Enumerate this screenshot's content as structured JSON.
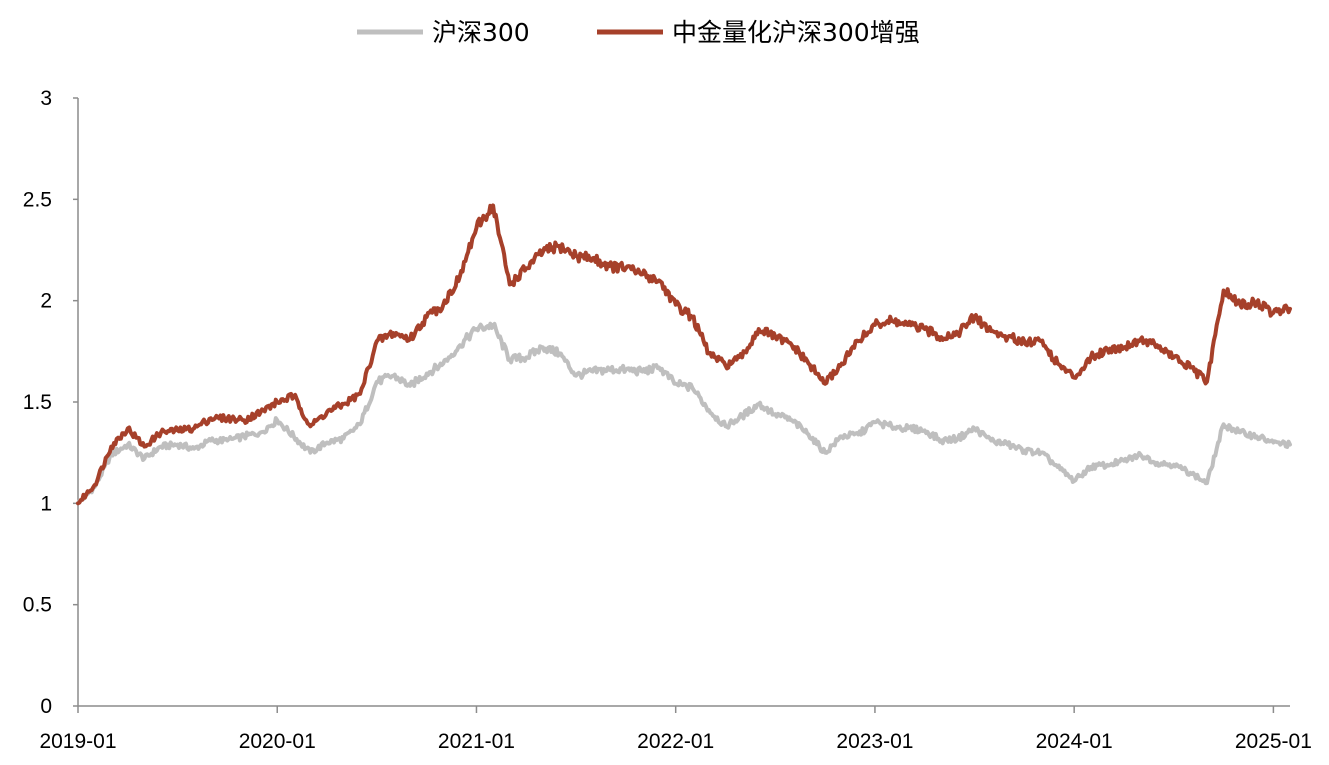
{
  "chart_data": {
    "type": "line",
    "title": "",
    "xlabel": "",
    "ylabel": "",
    "ylim": [
      0,
      3
    ],
    "xlim": [
      "2019-01",
      "2025-02"
    ],
    "grid": false,
    "legend_placement": "top",
    "y_ticks": [
      "0",
      "0.5",
      "1",
      "1.5",
      "2",
      "2.5",
      "3"
    ],
    "x_ticks": [
      "2019-01",
      "2020-01",
      "2021-01",
      "2022-01",
      "2023-01",
      "2024-01",
      "2025-01"
    ],
    "series": [
      {
        "name": "沪深300",
        "color": "#bfbfbf",
        "points": [
          [
            "2019-01",
            1.0
          ],
          [
            "2019-02",
            1.08
          ],
          [
            "2019-03",
            1.24
          ],
          [
            "2019-04",
            1.29
          ],
          [
            "2019-05",
            1.22
          ],
          [
            "2019-06",
            1.28
          ],
          [
            "2019-07",
            1.29
          ],
          [
            "2019-08",
            1.27
          ],
          [
            "2019-09",
            1.31
          ],
          [
            "2019-10",
            1.31
          ],
          [
            "2019-11",
            1.33
          ],
          [
            "2019-12",
            1.35
          ],
          [
            "2020-01",
            1.41
          ],
          [
            "2020-02",
            1.33
          ],
          [
            "2020-03",
            1.25
          ],
          [
            "2020-04",
            1.3
          ],
          [
            "2020-05",
            1.32
          ],
          [
            "2020-06",
            1.39
          ],
          [
            "2020-07",
            1.6
          ],
          [
            "2020-08",
            1.63
          ],
          [
            "2020-09",
            1.58
          ],
          [
            "2020-10",
            1.64
          ],
          [
            "2020-11",
            1.69
          ],
          [
            "2020-12",
            1.78
          ],
          [
            "2021-01",
            1.86
          ],
          [
            "2021-02",
            1.88
          ],
          [
            "2021-03",
            1.71
          ],
          [
            "2021-04",
            1.72
          ],
          [
            "2021-05",
            1.77
          ],
          [
            "2021-06",
            1.74
          ],
          [
            "2021-07",
            1.63
          ],
          [
            "2021-08",
            1.65
          ],
          [
            "2021-09",
            1.66
          ],
          [
            "2021-10",
            1.66
          ],
          [
            "2021-11",
            1.65
          ],
          [
            "2021-12",
            1.67
          ],
          [
            "2022-01",
            1.59
          ],
          [
            "2022-02",
            1.57
          ],
          [
            "2022-03",
            1.46
          ],
          [
            "2022-04",
            1.38
          ],
          [
            "2022-05",
            1.43
          ],
          [
            "2022-06",
            1.49
          ],
          [
            "2022-07",
            1.44
          ],
          [
            "2022-08",
            1.41
          ],
          [
            "2022-09",
            1.34
          ],
          [
            "2022-10",
            1.25
          ],
          [
            "2022-11",
            1.33
          ],
          [
            "2022-12",
            1.34
          ],
          [
            "2023-01",
            1.4
          ],
          [
            "2023-02",
            1.38
          ],
          [
            "2023-03",
            1.37
          ],
          [
            "2023-04",
            1.36
          ],
          [
            "2023-05",
            1.31
          ],
          [
            "2023-06",
            1.32
          ],
          [
            "2023-07",
            1.37
          ],
          [
            "2023-08",
            1.31
          ],
          [
            "2023-09",
            1.29
          ],
          [
            "2023-10",
            1.26
          ],
          [
            "2023-11",
            1.25
          ],
          [
            "2023-12",
            1.18
          ],
          [
            "2024-01",
            1.11
          ],
          [
            "2024-02",
            1.18
          ],
          [
            "2024-03",
            1.19
          ],
          [
            "2024-04",
            1.21
          ],
          [
            "2024-05",
            1.24
          ],
          [
            "2024-06",
            1.2
          ],
          [
            "2024-07",
            1.19
          ],
          [
            "2024-08",
            1.15
          ],
          [
            "2024-09",
            1.1
          ],
          [
            "2024-10",
            1.39
          ],
          [
            "2024-11",
            1.35
          ],
          [
            "2024-12",
            1.33
          ],
          [
            "2025-01",
            1.3
          ],
          [
            "2025-02",
            1.29
          ]
        ]
      },
      {
        "name": "中金量化沪深300增强",
        "color": "#a6402a",
        "points": [
          [
            "2019-01",
            1.0
          ],
          [
            "2019-02",
            1.09
          ],
          [
            "2019-03",
            1.28
          ],
          [
            "2019-04",
            1.37
          ],
          [
            "2019-05",
            1.28
          ],
          [
            "2019-06",
            1.35
          ],
          [
            "2019-07",
            1.36
          ],
          [
            "2019-08",
            1.37
          ],
          [
            "2019-09",
            1.42
          ],
          [
            "2019-10",
            1.42
          ],
          [
            "2019-11",
            1.41
          ],
          [
            "2019-12",
            1.45
          ],
          [
            "2020-01",
            1.5
          ],
          [
            "2020-02",
            1.53
          ],
          [
            "2020-03",
            1.38
          ],
          [
            "2020-04",
            1.45
          ],
          [
            "2020-05",
            1.49
          ],
          [
            "2020-06",
            1.54
          ],
          [
            "2020-07",
            1.8
          ],
          [
            "2020-08",
            1.84
          ],
          [
            "2020-09",
            1.81
          ],
          [
            "2020-10",
            1.92
          ],
          [
            "2020-11",
            1.98
          ],
          [
            "2020-12",
            2.12
          ],
          [
            "2021-01",
            2.36
          ],
          [
            "2021-02",
            2.47
          ],
          [
            "2021-03",
            2.08
          ],
          [
            "2021-04",
            2.16
          ],
          [
            "2021-05",
            2.24
          ],
          [
            "2021-06",
            2.27
          ],
          [
            "2021-07",
            2.22
          ],
          [
            "2021-08",
            2.21
          ],
          [
            "2021-09",
            2.17
          ],
          [
            "2021-10",
            2.16
          ],
          [
            "2021-11",
            2.13
          ],
          [
            "2021-12",
            2.1
          ],
          [
            "2022-01",
            1.98
          ],
          [
            "2022-02",
            1.92
          ],
          [
            "2022-03",
            1.74
          ],
          [
            "2022-04",
            1.68
          ],
          [
            "2022-05",
            1.72
          ],
          [
            "2022-06",
            1.86
          ],
          [
            "2022-07",
            1.82
          ],
          [
            "2022-08",
            1.78
          ],
          [
            "2022-09",
            1.69
          ],
          [
            "2022-10",
            1.59
          ],
          [
            "2022-11",
            1.69
          ],
          [
            "2022-12",
            1.8
          ],
          [
            "2023-01",
            1.88
          ],
          [
            "2023-02",
            1.9
          ],
          [
            "2023-03",
            1.88
          ],
          [
            "2023-04",
            1.86
          ],
          [
            "2023-05",
            1.82
          ],
          [
            "2023-06",
            1.84
          ],
          [
            "2023-07",
            1.92
          ],
          [
            "2023-08",
            1.85
          ],
          [
            "2023-09",
            1.82
          ],
          [
            "2023-10",
            1.8
          ],
          [
            "2023-11",
            1.8
          ],
          [
            "2023-12",
            1.69
          ],
          [
            "2024-01",
            1.62
          ],
          [
            "2024-02",
            1.72
          ],
          [
            "2024-03",
            1.76
          ],
          [
            "2024-04",
            1.77
          ],
          [
            "2024-05",
            1.81
          ],
          [
            "2024-06",
            1.78
          ],
          [
            "2024-07",
            1.72
          ],
          [
            "2024-08",
            1.67
          ],
          [
            "2024-09",
            1.6
          ],
          [
            "2024-10",
            2.05
          ],
          [
            "2024-11",
            1.98
          ],
          [
            "2024-12",
            1.99
          ],
          [
            "2025-01",
            1.94
          ],
          [
            "2025-02",
            1.96
          ]
        ]
      }
    ]
  }
}
